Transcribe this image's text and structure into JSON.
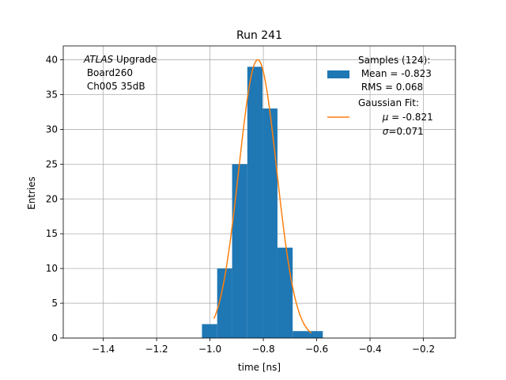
{
  "chart_data": {
    "type": "bar",
    "title": "Run 241",
    "xlabel": "time [ns]",
    "ylabel": "Entries",
    "xlim": [
      -1.55,
      -0.08
    ],
    "ylim": [
      0,
      42
    ],
    "grid": true,
    "xticks": [
      -1.4,
      -1.2,
      -1.0,
      -0.8,
      -0.6,
      -0.4,
      -0.2
    ],
    "xtick_labels": [
      "−1.4",
      "−1.2",
      "−1.0",
      "−0.8",
      "−0.6",
      "−0.4",
      "−0.2"
    ],
    "yticks": [
      0,
      5,
      10,
      15,
      20,
      25,
      30,
      35,
      40
    ],
    "histogram": {
      "bin_edges": [
        -1.03,
        -0.973,
        -0.917,
        -0.86,
        -0.803,
        -0.747,
        -0.69,
        -0.633,
        -0.577
      ],
      "counts": [
        2,
        10,
        25,
        39,
        33,
        13,
        1,
        1
      ],
      "color": "#1f77b4"
    },
    "gaussian_fit": {
      "amplitude": 40,
      "mu": -0.821,
      "sigma": 0.071,
      "x_range": [
        -0.985,
        -0.62
      ],
      "color": "#ff7f0e"
    },
    "annotation": {
      "line1_italic": "ATLAS",
      "line1_rest": " Upgrade",
      "line2": " Board260",
      "line3": " Ch005 35dB"
    },
    "legend": {
      "placement": "top-right",
      "samples": [
        "Samples (124):",
        " Mean = -0.823",
        " RMS = 0.068"
      ],
      "fit_title": "Gaussian Fit:",
      "fit_mu_symbol": "μ",
      "fit_mu_value": " = -0.821",
      "fit_sigma_symbol": "σ",
      "fit_sigma_value": "=0.071"
    }
  }
}
